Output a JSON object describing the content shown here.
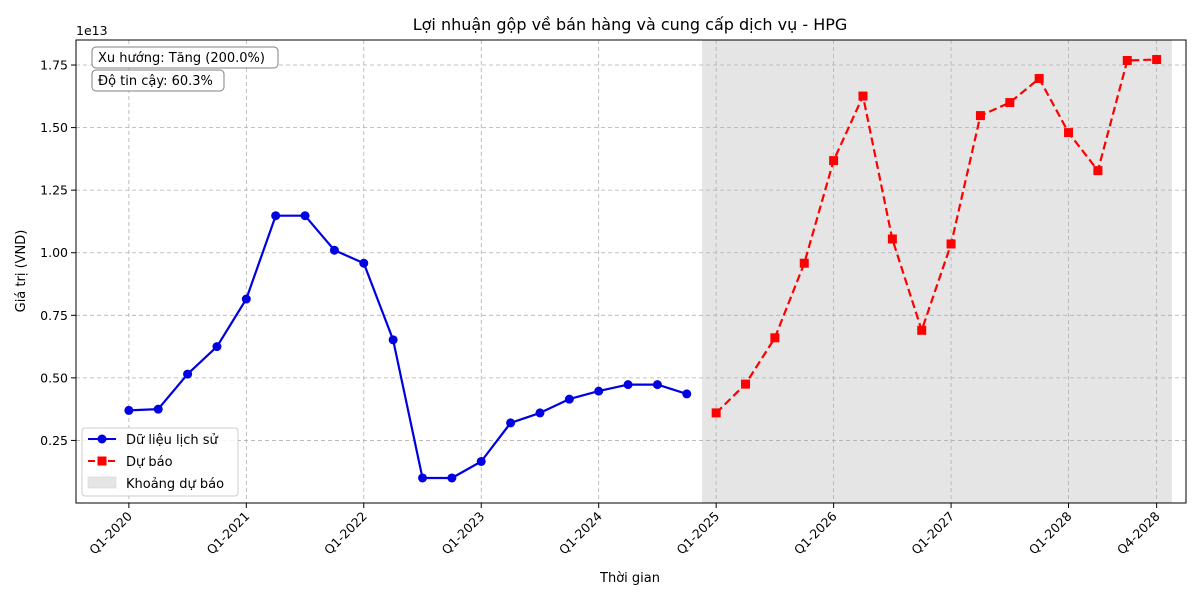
{
  "chart_data": {
    "type": "line",
    "title": "Lợi nhuận gộp về bán hàng và cung cấp dịch vụ - HPG",
    "xlabel": "Thời gian",
    "ylabel": "Giá trị (VND)",
    "y_multiplier_label": "1e13",
    "y_scale": 10000000000000.0,
    "xlim": [
      2019.55,
      2029.0
    ],
    "ylim": [
      0.0,
      1.85
    ],
    "x_ticks": [
      {
        "x": 2020.0,
        "label": "Q1-2020"
      },
      {
        "x": 2021.0,
        "label": "Q1-2021"
      },
      {
        "x": 2022.0,
        "label": "Q1-2022"
      },
      {
        "x": 2023.0,
        "label": "Q1-2023"
      },
      {
        "x": 2024.0,
        "label": "Q1-2024"
      },
      {
        "x": 2025.0,
        "label": "Q1-2025"
      },
      {
        "x": 2026.0,
        "label": "Q1-2026"
      },
      {
        "x": 2027.0,
        "label": "Q1-2027"
      },
      {
        "x": 2028.0,
        "label": "Q1-2028"
      },
      {
        "x": 2028.75,
        "label": "Q4-2028"
      }
    ],
    "y_ticks": [
      {
        "y": 0.25,
        "label": "0.25"
      },
      {
        "y": 0.5,
        "label": "0.50"
      },
      {
        "y": 0.75,
        "label": "0.75"
      },
      {
        "y": 1.0,
        "label": "1.00"
      },
      {
        "y": 1.25,
        "label": "1.25"
      },
      {
        "y": 1.5,
        "label": "1.50"
      },
      {
        "y": 1.75,
        "label": "1.75"
      }
    ],
    "grid": true,
    "forecast_region": {
      "x_start": 2024.88,
      "x_end": 2028.88,
      "color": "#e5e5e5"
    },
    "series": [
      {
        "name": "Dữ liệu lịch sử",
        "color": "#0000e0",
        "line_style": "solid",
        "marker": "circle",
        "points": [
          {
            "x": 2020.0,
            "y": 0.37
          },
          {
            "x": 2020.25,
            "y": 0.375
          },
          {
            "x": 2020.5,
            "y": 0.515
          },
          {
            "x": 2020.75,
            "y": 0.625
          },
          {
            "x": 2021.0,
            "y": 0.815
          },
          {
            "x": 2021.25,
            "y": 1.148
          },
          {
            "x": 2021.5,
            "y": 1.148
          },
          {
            "x": 2021.75,
            "y": 1.01
          },
          {
            "x": 2022.0,
            "y": 0.958
          },
          {
            "x": 2022.25,
            "y": 0.652
          },
          {
            "x": 2022.5,
            "y": 0.1
          },
          {
            "x": 2022.75,
            "y": 0.1
          },
          {
            "x": 2023.0,
            "y": 0.166
          },
          {
            "x": 2023.25,
            "y": 0.32
          },
          {
            "x": 2023.5,
            "y": 0.36
          },
          {
            "x": 2023.75,
            "y": 0.415
          },
          {
            "x": 2024.0,
            "y": 0.447
          },
          {
            "x": 2024.25,
            "y": 0.473
          },
          {
            "x": 2024.5,
            "y": 0.473
          },
          {
            "x": 2024.75,
            "y": 0.436
          }
        ]
      },
      {
        "name": "Dự báo",
        "color": "#ff0000",
        "line_style": "dashed",
        "marker": "square",
        "points": [
          {
            "x": 2025.0,
            "y": 0.36
          },
          {
            "x": 2025.25,
            "y": 0.475
          },
          {
            "x": 2025.5,
            "y": 0.66
          },
          {
            "x": 2025.75,
            "y": 0.958
          },
          {
            "x": 2026.0,
            "y": 1.368
          },
          {
            "x": 2026.25,
            "y": 1.626
          },
          {
            "x": 2026.5,
            "y": 1.055
          },
          {
            "x": 2026.75,
            "y": 0.69
          },
          {
            "x": 2027.0,
            "y": 1.035
          },
          {
            "x": 2027.25,
            "y": 1.548
          },
          {
            "x": 2027.5,
            "y": 1.6
          },
          {
            "x": 2027.75,
            "y": 1.696
          },
          {
            "x": 2028.0,
            "y": 1.48
          },
          {
            "x": 2028.25,
            "y": 1.328
          },
          {
            "x": 2028.5,
            "y": 1.768
          },
          {
            "x": 2028.75,
            "y": 1.772
          }
        ]
      }
    ],
    "legend": {
      "placement": "lower-left",
      "entries": [
        "Dữ liệu lịch sử",
        "Dự báo",
        "Khoảng dự báo"
      ]
    },
    "annotations": [
      "Xu hướng: Tăng (200.0%)",
      "Độ tin cậy: 60.3%"
    ]
  }
}
